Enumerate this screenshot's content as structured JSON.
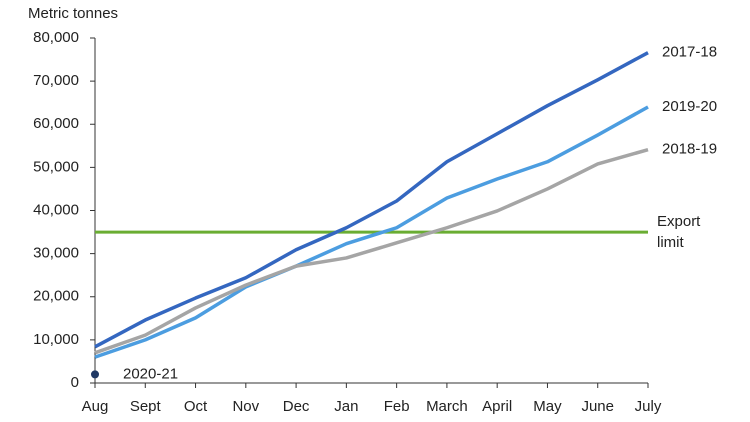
{
  "chart_data": {
    "type": "line",
    "y_axis_label": "Metric tonnes",
    "categories": [
      "Aug",
      "Sept",
      "Oct",
      "Nov",
      "Dec",
      "Jan",
      "Feb",
      "March",
      "April",
      "May",
      "June",
      "July"
    ],
    "series": [
      {
        "name": "2017-18",
        "color": "#3467c0",
        "values": [
          8400,
          14600,
          19700,
          24400,
          30900,
          36000,
          42200,
          51300,
          57800,
          64300,
          70300,
          76600
        ]
      },
      {
        "name": "2019-20",
        "color": "#4c9de0",
        "values": [
          6000,
          10000,
          15100,
          22300,
          27100,
          32300,
          36000,
          42900,
          47300,
          51300,
          57500,
          64000
        ]
      },
      {
        "name": "2018-19",
        "color": "#a5a5a5",
        "values": [
          7000,
          11100,
          17400,
          22700,
          27100,
          29000,
          32500,
          36000,
          39900,
          45000,
          50800,
          54100
        ]
      },
      {
        "name": "2020-21",
        "color": "#1f3864",
        "values": [
          2000,
          null,
          null,
          null,
          null,
          null,
          null,
          null,
          null,
          null,
          null,
          null
        ]
      }
    ],
    "export_limit": {
      "value": 35000,
      "label_lines": [
        "Export",
        "limit"
      ],
      "color": "#6aad33"
    },
    "ylim": [
      0,
      80000
    ],
    "yticks": [
      0,
      {
        "value": 10000,
        "label": "10,000"
      },
      {
        "value": 20000,
        "label": "20,000"
      },
      {
        "value": 30000,
        "label": "30,000"
      },
      {
        "value": 40000,
        "label": "40,000"
      },
      {
        "value": 50000,
        "label": "50,000"
      },
      {
        "value": 60000,
        "label": "60,000"
      },
      {
        "value": 70000,
        "label": "70,000"
      },
      {
        "value": 80000,
        "label": "80,000"
      }
    ],
    "grid": false
  }
}
